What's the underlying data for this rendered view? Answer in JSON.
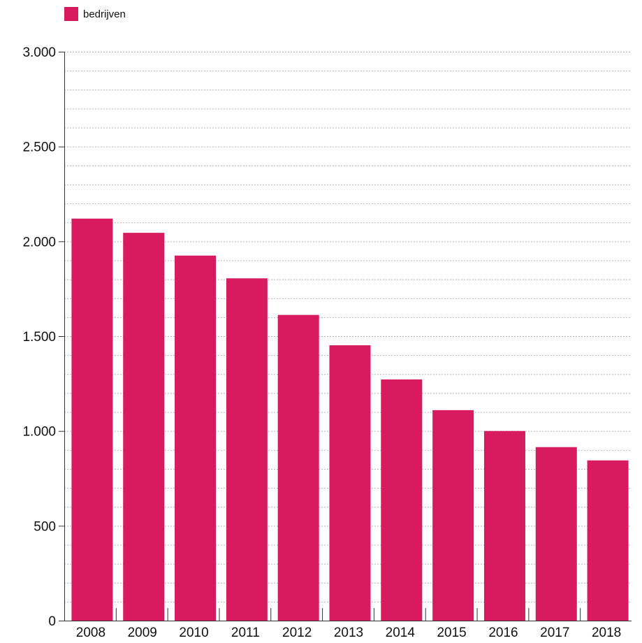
{
  "chart_data": {
    "type": "bar",
    "categories": [
      "2008",
      "2009",
      "2010",
      "2011",
      "2012",
      "2013",
      "2014",
      "2015",
      "2016",
      "2017",
      "2018"
    ],
    "series": [
      {
        "name": "bedrijven",
        "values": [
          2120,
          2045,
          1925,
          1805,
          1612,
          1452,
          1272,
          1110,
          1000,
          915,
          845
        ]
      }
    ],
    "title": "",
    "xlabel": "",
    "ylabel": "",
    "ylim": [
      0,
      3000
    ],
    "yticks": [
      0,
      500,
      1000,
      1500,
      2000,
      2500,
      3000
    ],
    "ytick_labels": [
      "0",
      "500",
      "1.000",
      "1.500",
      "2.000",
      "2.500",
      "3.000"
    ],
    "minor_grid_step": 100,
    "grid": true,
    "legend_position": "top-left",
    "colors": {
      "bar": "#d81b5e",
      "grid": "#b5b5b5",
      "axis": "#333333"
    }
  }
}
